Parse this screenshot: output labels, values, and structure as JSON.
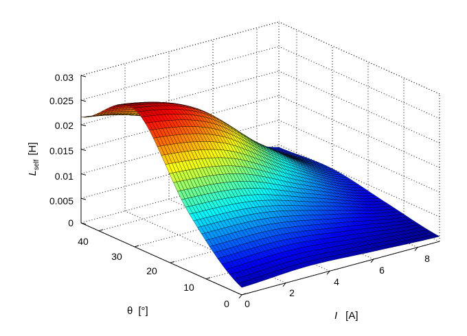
{
  "chart_data": {
    "type": "surface",
    "title": "",
    "colormap": "jet",
    "grid": true,
    "box": true,
    "x_axis": {
      "symbol": "I",
      "unit": "[A]",
      "range": [
        0,
        9
      ],
      "ticks": [
        "0",
        "2",
        "4",
        "6",
        "8"
      ]
    },
    "y_axis": {
      "symbol": "θ",
      "unit": "[°]",
      "range": [
        0,
        45
      ],
      "ticks": [
        "0",
        "10",
        "20",
        "30",
        "40"
      ]
    },
    "z_axis": {
      "symbol": "L",
      "subscript": "self",
      "unit": "[H]",
      "range": [
        0,
        0.03
      ],
      "ticks": [
        "0",
        "0.005",
        "0.01",
        "0.015",
        "0.02",
        "0.025",
        "0.03"
      ]
    },
    "surface_samples": {
      "x": [
        0,
        3,
        6,
        9
      ],
      "y": [
        0,
        15,
        30,
        45
      ],
      "z": [
        [
          0.0015,
          0.0022,
          0.0016,
          0.001
        ],
        [
          0.012,
          0.011,
          0.007,
          0.003
        ],
        [
          0.028,
          0.024,
          0.013,
          0.005
        ],
        [
          0.0215,
          0.018,
          0.011,
          0.0045
        ]
      ]
    }
  }
}
